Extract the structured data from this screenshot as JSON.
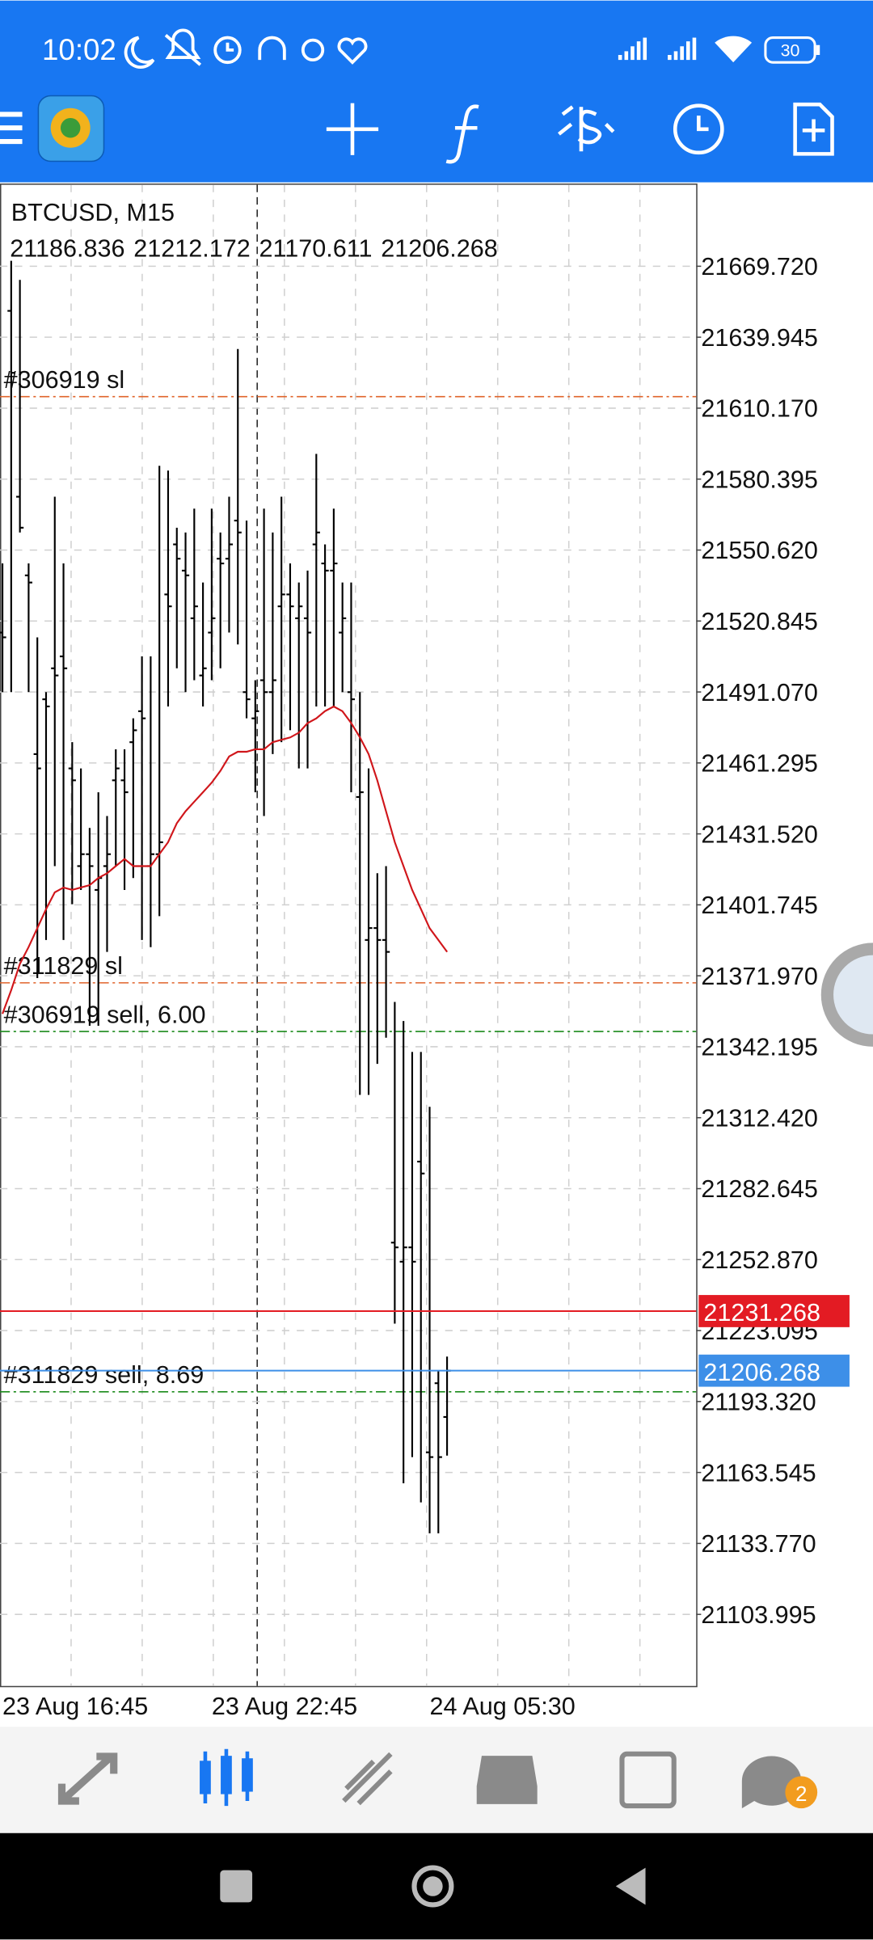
{
  "status_bar": {
    "time": "10:02",
    "battery": "30"
  },
  "bottom_nav": {
    "badge": "2"
  },
  "chart_data": {
    "type": "ohlc",
    "title": "BTCUSD, M15",
    "x": [
      "23 Aug 16:45",
      null,
      null,
      null,
      null,
      null,
      null,
      null,
      null,
      null,
      null,
      null,
      null,
      null,
      null,
      null,
      null,
      null,
      null,
      null,
      null,
      null,
      null,
      null,
      "23 Aug 22:45",
      null,
      null,
      null,
      null,
      null,
      null,
      null,
      null,
      null,
      null,
      null,
      null,
      null,
      null,
      null,
      null,
      null,
      null,
      null,
      null,
      null,
      null,
      null,
      null,
      "24 Aug 05:30",
      null,
      null
    ],
    "open": [
      21516,
      21651,
      21573,
      21540,
      21465,
      21488,
      21501,
      21506,
      21459,
      21418,
      21423,
      21408,
      21418,
      21454,
      21454,
      21470,
      21483,
      21418,
      21423,
      21532,
      21553,
      21542,
      21522,
      21498,
      21516,
      21547,
      21547,
      21563,
      21491,
      21480,
      21496,
      21491,
      21527,
      21532,
      21522,
      21522,
      21553,
      21545,
      21542,
      21516,
      21491,
      21447,
      21387,
      21392,
      21387,
      21260,
      21252,
      21258,
      21294,
      21172,
      21201,
      21186.836
    ],
    "high": [
      21545,
      21672,
      21664,
      21545,
      21514,
      21491,
      21573,
      21545,
      21470,
      21459,
      21434,
      21449,
      21439,
      21467,
      21467,
      21480,
      21506,
      21506,
      21586,
      21584,
      21560,
      21558,
      21568,
      21537,
      21568,
      21558,
      21573,
      21635,
      21563,
      21496,
      21568,
      21558,
      21573,
      21545,
      21537,
      21542,
      21591,
      21553,
      21568,
      21537,
      21537,
      21491,
      21459,
      21415,
      21418,
      21361,
      21353,
      21340,
      21340,
      21317,
      21206,
      21212.172
    ],
    "low": [
      21491,
      21491,
      21558,
      21491,
      21371,
      21387,
      21418,
      21387,
      21402,
      21408,
      21351,
      21351,
      21382,
      21418,
      21408,
      21413,
      21387,
      21384,
      21397,
      21485,
      21501,
      21491,
      21496,
      21485,
      21496,
      21501,
      21516,
      21511,
      21480,
      21449,
      21439,
      21465,
      21470,
      21475,
      21459,
      21459,
      21485,
      21485,
      21485,
      21491,
      21449,
      21322,
      21322,
      21335,
      21346,
      21226,
      21159,
      21170,
      21151,
      21138,
      21138,
      21170.611
    ],
    "close": [
      21514,
      21625,
      21560,
      21537,
      21459,
      21485,
      21498,
      21501,
      21454,
      21423,
      21418,
      21413,
      21423,
      21459,
      21449,
      21475,
      21480,
      21423,
      21428,
      21527,
      21547,
      21540,
      21527,
      21501,
      21522,
      21545,
      21553,
      21558,
      21488,
      21483,
      21491,
      21496,
      21532,
      21527,
      21527,
      21516,
      21558,
      21542,
      21545,
      21522,
      21488,
      21449,
      21392,
      21387,
      21382,
      21258,
      21258,
      21252,
      21289,
      21170,
      21170,
      21206.268
    ],
    "ma": {
      "color": "#d0161b",
      "values": [
        21356,
        21366,
        21377,
        21384,
        21392,
        21400,
        21407,
        21409,
        21408,
        21409,
        21410,
        21413,
        21415,
        21418,
        21421,
        21418,
        21418,
        21418,
        21423,
        21428,
        21436,
        21441,
        21445,
        21449,
        21453,
        21458,
        21464,
        21466,
        21466,
        21467,
        21467,
        21470,
        21471,
        21472,
        21474,
        21478,
        21480,
        21483,
        21485,
        21483,
        21478,
        21472,
        21465,
        21454,
        21441,
        21428,
        21418,
        21408,
        21400,
        21392,
        21387,
        21382
      ]
    },
    "levels": [
      {
        "label": "#306919 sl",
        "value": 21615,
        "color": "#e0632a"
      },
      {
        "label": "#311829 sl",
        "value": 21369,
        "color": "#e0632a"
      },
      {
        "label": "#306919 sell, 6.00",
        "value": 21348.6,
        "color": "#1a8a1a"
      },
      {
        "label": "#311829 sell, 8.69",
        "value": 21197.4,
        "color": "#1a8a1a"
      }
    ],
    "ask": {
      "value": 21231.268,
      "color": "#e31b23"
    },
    "bid_color": "#3d8fe8",
    "ylim": [
      21073.96,
      21703.9
    ],
    "yticks": [
      {
        "value": 21669.72,
        "label": "21669.720"
      },
      21639.945,
      {
        "value": 21610.17,
        "label": "21610.170"
      },
      21580.395,
      {
        "value": 21550.62,
        "label": "21550.620"
      },
      21520.845,
      {
        "value": 21491.07,
        "label": "21491.070"
      },
      21461.295,
      {
        "value": 21431.52,
        "label": "21431.520"
      },
      21401.745,
      {
        "value": 21371.97,
        "label": "21371.970"
      },
      21342.195,
      {
        "value": 21312.42,
        "label": "21312.420"
      },
      21282.645,
      {
        "value": 21252.87,
        "label": "21252.870"
      },
      21223.095,
      {
        "value": 21193.32,
        "label": "21193.320"
      },
      21163.545,
      {
        "value": 21133.77,
        "label": "21133.770"
      },
      21103.995
    ],
    "grid": true
  }
}
